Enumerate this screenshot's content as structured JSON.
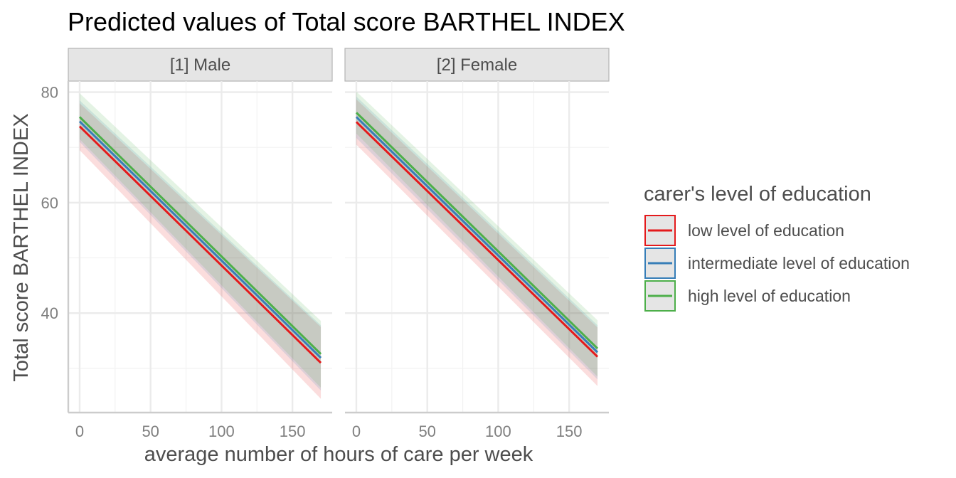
{
  "chart_data": {
    "type": "line",
    "title": "Predicted values of Total score BARTHEL INDEX",
    "xlabel": "average number of hours of care per week",
    "ylabel": "Total score BARTHEL INDEX",
    "xlim": [
      -8,
      178
    ],
    "ylim": [
      22,
      82
    ],
    "x_ticks": [
      0,
      50,
      100,
      150
    ],
    "y_ticks": [
      40,
      60,
      80
    ],
    "x_minor": [
      25,
      75,
      125
    ],
    "y_minor": [
      30,
      50,
      70
    ],
    "grid": true,
    "legend_placement": "right",
    "legend": {
      "title": "carer's level of education"
    },
    "series": [
      {
        "name": "low level of education",
        "color": "#e41a1c"
      },
      {
        "name": "intermediate level of education",
        "color": "#377eb8"
      },
      {
        "name": "high level of education",
        "color": "#4daf4a"
      }
    ],
    "panels": [
      {
        "label": "[1] Male",
        "lines": [
          {
            "series": 0,
            "x": [
              0,
              170
            ],
            "y": [
              73.8,
              31.0
            ],
            "ci_lo": [
              69.5,
              24.5
            ],
            "ci_hi": [
              78.0,
              37.5
            ]
          },
          {
            "series": 1,
            "x": [
              0,
              170
            ],
            "y": [
              74.7,
              31.9
            ],
            "ci_lo": [
              71.0,
              26.0
            ],
            "ci_hi": [
              78.5,
              37.8
            ]
          },
          {
            "series": 2,
            "x": [
              0,
              170
            ],
            "y": [
              75.5,
              32.6
            ],
            "ci_lo": [
              71.5,
              26.5
            ],
            "ci_hi": [
              79.8,
              38.6
            ]
          }
        ]
      },
      {
        "label": "[2] Female",
        "lines": [
          {
            "series": 0,
            "x": [
              0,
              170
            ],
            "y": [
              74.6,
              32.1
            ],
            "ci_lo": [
              70.5,
              26.8
            ],
            "ci_hi": [
              78.7,
              37.4
            ]
          },
          {
            "series": 1,
            "x": [
              0,
              170
            ],
            "y": [
              75.5,
              32.9
            ],
            "ci_lo": [
              71.7,
              28.0
            ],
            "ci_hi": [
              79.2,
              37.8
            ]
          },
          {
            "series": 2,
            "x": [
              0,
              170
            ],
            "y": [
              76.3,
              33.6
            ],
            "ci_lo": [
              72.5,
              28.5
            ],
            "ci_hi": [
              80.1,
              38.7
            ]
          }
        ]
      }
    ]
  }
}
